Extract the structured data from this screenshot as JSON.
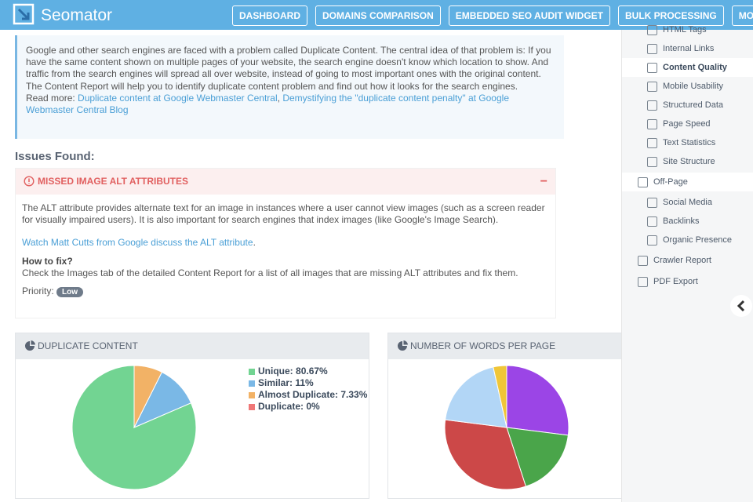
{
  "header": {
    "brand": "Seomator",
    "nav": [
      "DASHBOARD",
      "DOMAINS COMPARISON",
      "EMBEDDED SEO AUDIT WIDGET",
      "BULK PROCESSING",
      "MONITOR"
    ]
  },
  "info": {
    "text": "Google and other search engines are faced with a problem called Duplicate Content. The central idea of that problem is: If you have the same content shown on multiple pages of your website, the search engine doesn't know which location to show. And traffic from the search engines will spread all over website, instead of going to most important ones with the original content. The Content Report will help you to identify duplicate content problem and find out how it looks for the search engines.",
    "read_more": "Read more:",
    "links": [
      "Duplicate content at Google Webmaster Central",
      "Demystifying the \"duplicate content penalty\" at Google Webmaster Central Blog"
    ],
    "separator": ","
  },
  "issues": {
    "heading": "Issues Found:",
    "title": "MISSED IMAGE ALT ATTRIBUTES",
    "toggle": "−",
    "description": "The ALT attribute provides alternate text for an image in instances where a user cannot view images (such as a screen reader for visually impaired users). It is also important for search engines that index images (like Google's Image Search).",
    "link": "Watch Matt Cutts from Google discuss the ALT attribute",
    "link_end": ".",
    "how_to_fix": "How to fix?",
    "fix": "Check the Images tab of the detailed Content Report for a list of all images that are missing ALT attributes and fix them.",
    "priority_label": "Priority:",
    "priority": "Low"
  },
  "sidebar": {
    "items": [
      "HTML Tags",
      "Internal Links",
      "Content Quality",
      "Mobile Usability",
      "Structured Data",
      "Page Speed",
      "Text Statistics",
      "Site Structure"
    ],
    "active": 2,
    "section": "Off-Page",
    "section_items": [
      "Social Media",
      "Backlinks",
      "Organic Presence"
    ],
    "bottom": [
      "Crawler Report",
      "PDF Export"
    ]
  },
  "chart_data": [
    {
      "type": "pie",
      "title": "DUPLICATE CONTENT",
      "categories": [
        "Unique",
        "Similar",
        "Almost Duplicate",
        "Duplicate"
      ],
      "values": [
        80.67,
        11,
        7.33,
        0
      ],
      "value_labels": [
        "80.67%",
        "11%",
        "7.33%",
        "0%"
      ],
      "label_separator": ":",
      "colors": [
        "#72d492",
        "#7ab8e6",
        "#f2b266",
        "#ef7777"
      ],
      "clockwise": false
    },
    {
      "type": "pie",
      "title": "NUMBER OF WORDS PER PAGE",
      "values": [
        27,
        18,
        32,
        19.5,
        3.5
      ],
      "colors": [
        "#9b45e6",
        "#4aa54a",
        "#cc4848",
        "#b2d6f6",
        "#f0c638"
      ],
      "clockwise": true
    }
  ]
}
